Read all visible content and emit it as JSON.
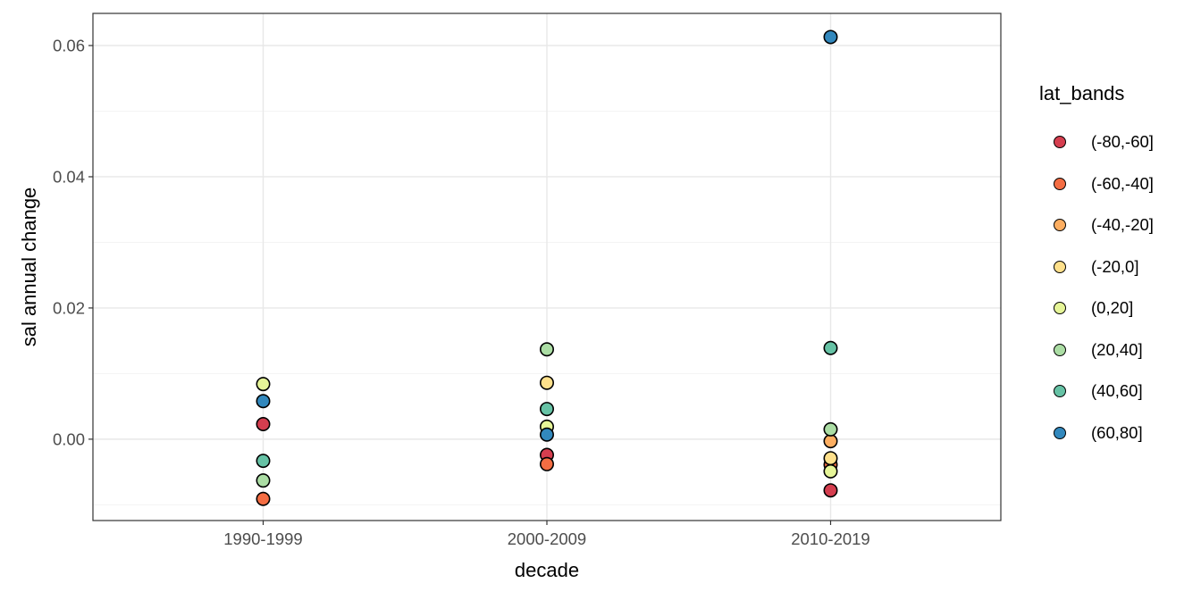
{
  "chart_data": {
    "type": "scatter",
    "title": "",
    "xlabel": "decade",
    "ylabel": "sal annual change",
    "categories": [
      "1990-1999",
      "2000-2009",
      "2010-2019"
    ],
    "ylim": [
      -0.0124,
      0.0649
    ],
    "y_major_ticks": [
      0.0,
      0.02,
      0.04,
      0.06
    ],
    "y_tick_labels": [
      "0.00",
      "0.02",
      "0.04",
      "0.06"
    ],
    "y_minor_ticks": [
      -0.01,
      0.01,
      0.03,
      0.05
    ],
    "grid": true,
    "legend": {
      "title": "lat_bands",
      "position": "right"
    },
    "point_style": {
      "outline": "#000000",
      "radius_px": 7.2
    },
    "colors": {
      "panel_border": "#333333",
      "grid_major": "#e8e8e8",
      "grid_minor": "#f3f3f3",
      "tick_text": "#4d4d4d"
    },
    "series": [
      {
        "name": "(-80,-60]",
        "color": "#d53e4f",
        "values": [
          0.0023,
          -0.0024,
          -0.0078
        ]
      },
      {
        "name": "(-60,-40]",
        "color": "#f46d43",
        "values": [
          -0.0091,
          -0.0038,
          -0.0039
        ]
      },
      {
        "name": "(-40,-20]",
        "color": "#fdae61",
        "values": [
          null,
          null,
          -0.0003
        ]
      },
      {
        "name": "(-20,0]",
        "color": "#fee08b",
        "values": [
          null,
          0.0086,
          -0.0029
        ]
      },
      {
        "name": "(0,20]",
        "color": "#e6f598",
        "values": [
          0.0084,
          0.0019,
          -0.0049
        ]
      },
      {
        "name": "(20,40]",
        "color": "#abdda4",
        "values": [
          -0.0063,
          0.0137,
          0.0015
        ]
      },
      {
        "name": "(40,60]",
        "color": "#66c2a5",
        "values": [
          -0.0033,
          0.0046,
          0.0139
        ]
      },
      {
        "name": "(60,80]",
        "color": "#3288bd",
        "values": [
          0.0058,
          0.0007,
          0.0613
        ]
      }
    ]
  }
}
